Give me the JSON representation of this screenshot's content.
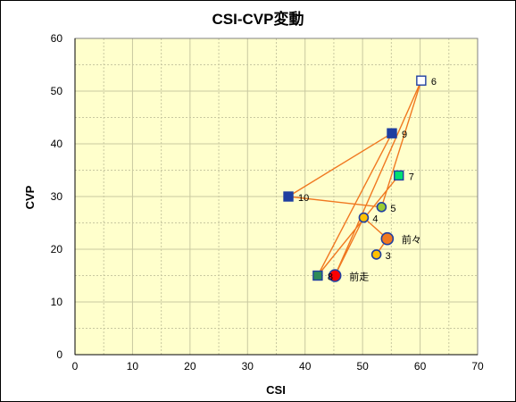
{
  "chart_data": {
    "type": "scatter",
    "title": "CSI-CVP変動",
    "xlabel": "CSI",
    "ylabel": "CVP",
    "xlim": [
      0,
      70
    ],
    "ylim": [
      0,
      60
    ],
    "xticks": [
      "0",
      "10",
      "20",
      "30",
      "40",
      "50",
      "60",
      "70"
    ],
    "yticks": [
      "0",
      "10",
      "20",
      "30",
      "40",
      "50",
      "60"
    ],
    "grid": true,
    "legend": "none",
    "colors": {
      "plot_bg": "#FFFFCC",
      "grid": "#C8C8A0",
      "line": "#F07820",
      "axis": "#000000"
    },
    "line_order": [
      "3",
      "前々",
      "4",
      "前走",
      "6",
      "5",
      "10",
      "9",
      "8",
      "7"
    ],
    "points": [
      {
        "id": "前走",
        "label": "前走",
        "x": 45.2,
        "y": 15,
        "marker": "circle",
        "fill": "#FF0000",
        "stroke": "#1F3FA0",
        "size": 13,
        "dx": 16,
        "dy": 1
      },
      {
        "id": "前々",
        "label": "前々",
        "x": 54.3,
        "y": 22,
        "marker": "circle",
        "fill": "#F07820",
        "stroke": "#1F3FA0",
        "size": 13,
        "dx": 16,
        "dy": 1
      },
      {
        "id": "3",
        "label": "3",
        "x": 52.4,
        "y": 19,
        "marker": "circle",
        "fill": "#FFC000",
        "stroke": "#1F3FA0",
        "size": 10,
        "dx": 10,
        "dy": 1
      },
      {
        "id": "4",
        "label": "4",
        "x": 50.2,
        "y": 26,
        "marker": "circle",
        "fill": "#FFC000",
        "stroke": "#1F3FA0",
        "size": 10,
        "dx": 10,
        "dy": 1
      },
      {
        "id": "5",
        "label": "5",
        "x": 53.3,
        "y": 28,
        "marker": "circle",
        "fill": "#9ACD32",
        "stroke": "#1F3FA0",
        "size": 10,
        "dx": 10,
        "dy": 1
      },
      {
        "id": "6",
        "label": "6",
        "x": 60.2,
        "y": 52,
        "marker": "square",
        "fill": "#FFFFFF",
        "stroke": "#1F3FA0",
        "size": 10,
        "dx": 11,
        "dy": 1
      },
      {
        "id": "7",
        "label": "7",
        "x": 56.3,
        "y": 34,
        "marker": "square",
        "fill": "#00E070",
        "stroke": "#1F3FA0",
        "size": 10,
        "dx": 11,
        "dy": 1
      },
      {
        "id": "8",
        "label": "8",
        "x": 42.2,
        "y": 15,
        "marker": "square",
        "fill": "#2E8B57",
        "stroke": "#1F3FA0",
        "size": 10,
        "dx": 11,
        "dy": 1
      },
      {
        "id": "9",
        "label": "9",
        "x": 55.1,
        "y": 42,
        "marker": "square",
        "fill": "#1F3FA0",
        "stroke": "#1F3FA0",
        "size": 10,
        "dx": 11,
        "dy": 1
      },
      {
        "id": "10",
        "label": "10",
        "x": 37.1,
        "y": 30,
        "marker": "square",
        "fill": "#1F3FA0",
        "stroke": "#1F3FA0",
        "size": 10,
        "dx": 11,
        "dy": 1
      }
    ]
  }
}
